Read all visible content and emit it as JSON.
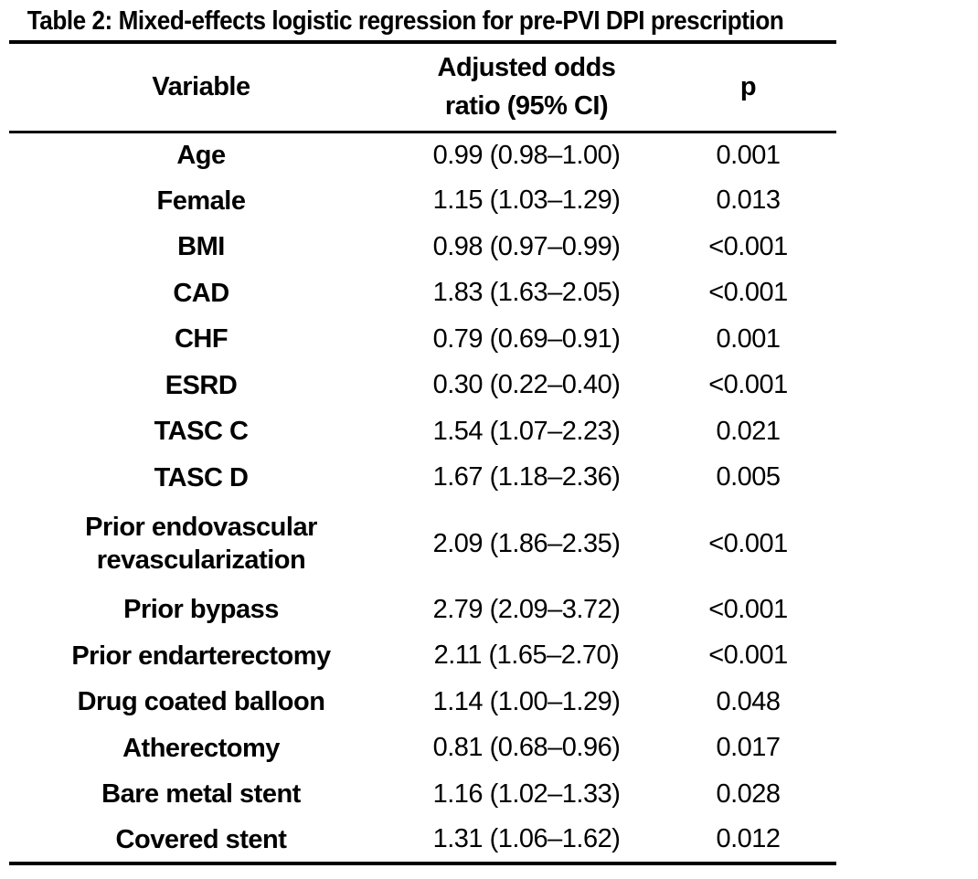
{
  "table": {
    "title": "Table 2: Mixed-effects logistic regression for pre-PVI DPI prescription",
    "columns": {
      "variable": "Variable",
      "aor": "Adjusted odds\nratio (95% CI)",
      "p": "p"
    },
    "rows": [
      {
        "variable": "Age",
        "aor_ci": "0.99 (0.98–1.00)",
        "p": "0.001"
      },
      {
        "variable": "Female",
        "aor_ci": "1.15 (1.03–1.29)",
        "p": "0.013"
      },
      {
        "variable": "BMI",
        "aor_ci": "0.98 (0.97–0.99)",
        "p": "<0.001"
      },
      {
        "variable": "CAD",
        "aor_ci": "1.83 (1.63–2.05)",
        "p": "<0.001"
      },
      {
        "variable": "CHF",
        "aor_ci": "0.79 (0.69–0.91)",
        "p": "0.001"
      },
      {
        "variable": "ESRD",
        "aor_ci": "0.30 (0.22–0.40)",
        "p": "<0.001"
      },
      {
        "variable": "TASC C",
        "aor_ci": "1.54 (1.07–2.23)",
        "p": "0.021"
      },
      {
        "variable": "TASC D",
        "aor_ci": "1.67 (1.18–2.36)",
        "p": "0.005"
      },
      {
        "variable": "Prior endovascular revascularization",
        "aor_ci": "2.09 (1.86–2.35)",
        "p": "<0.001"
      },
      {
        "variable": "Prior bypass",
        "aor_ci": "2.79 (2.09–3.72)",
        "p": "<0.001"
      },
      {
        "variable": "Prior endarterectomy",
        "aor_ci": "2.11 (1.65–2.70)",
        "p": "<0.001"
      },
      {
        "variable": "Drug coated balloon",
        "aor_ci": "1.14 (1.00–1.29)",
        "p": "0.048"
      },
      {
        "variable": "Atherectomy",
        "aor_ci": "0.81 (0.68–0.96)",
        "p": "0.017"
      },
      {
        "variable": "Bare metal stent",
        "aor_ci": "1.16 (1.02–1.33)",
        "p": "0.028"
      },
      {
        "variable": "Covered stent",
        "aor_ci": "1.31 (1.06–1.62)",
        "p": "0.012"
      }
    ],
    "text_color": "#000000",
    "background_color": "#ffffff"
  }
}
